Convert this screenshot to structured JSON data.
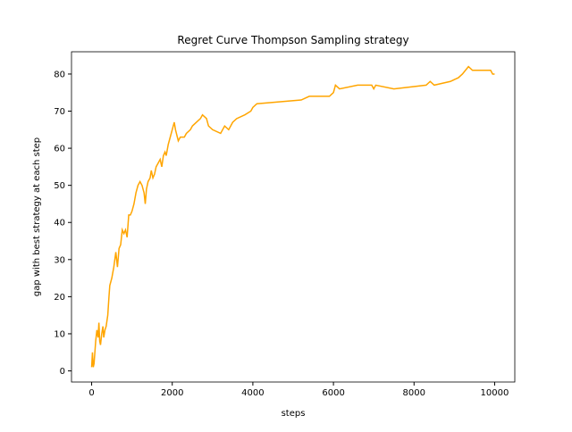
{
  "chart_data": {
    "type": "line",
    "title": "Regret Curve Thompson Sampling strategy",
    "x_label": "steps",
    "y_label": "gap with best strategy at each step",
    "x": [
      0,
      20,
      40,
      60,
      80,
      100,
      130,
      160,
      180,
      200,
      220,
      250,
      280,
      300,
      330,
      360,
      400,
      430,
      450,
      500,
      550,
      600,
      640,
      680,
      720,
      760,
      800,
      840,
      880,
      920,
      960,
      1000,
      1050,
      1100,
      1150,
      1200,
      1250,
      1300,
      1330,
      1360,
      1400,
      1450,
      1480,
      1520,
      1560,
      1600,
      1650,
      1700,
      1740,
      1780,
      1820,
      1850,
      1900,
      1950,
      2000,
      2050,
      2080,
      2150,
      2200,
      2300,
      2350,
      2450,
      2500,
      2600,
      2700,
      2750,
      2850,
      2900,
      3000,
      3200,
      3300,
      3400,
      3500,
      3600,
      3800,
      3950,
      4000,
      4100,
      5200,
      5400,
      5900,
      6000,
      6050,
      6150,
      6600,
      6950,
      7000,
      7050,
      7500,
      8300,
      8400,
      8500,
      8900,
      9100,
      9200,
      9350,
      9450,
      9900,
      9950,
      10000
    ],
    "series": [
      {
        "name": "regret",
        "color": "#ffa500",
        "values": [
          1,
          5,
          1,
          2,
          5,
          8,
          11,
          9,
          13,
          8,
          7,
          10,
          12,
          9,
          11,
          12,
          15,
          20,
          23,
          25,
          28,
          32,
          28,
          33,
          34,
          38,
          37,
          38,
          36,
          42,
          42,
          43,
          45,
          48,
          50,
          51,
          50,
          48,
          45,
          49,
          51,
          52,
          54,
          52,
          53,
          55,
          56,
          57,
          55,
          58,
          59,
          58,
          61,
          63,
          65,
          67,
          65,
          62,
          63,
          63,
          64,
          65,
          66,
          67,
          68,
          69,
          68,
          66,
          65,
          64,
          66,
          65,
          67,
          68,
          69,
          70,
          71,
          72,
          73,
          74,
          74,
          75,
          77,
          76,
          77,
          77,
          76,
          77,
          76,
          77,
          78,
          77,
          78,
          79,
          80,
          82,
          81,
          81,
          80,
          80
        ]
      }
    ],
    "xlim": [
      -500,
      10500
    ],
    "xticks": [
      0,
      2000,
      4000,
      6000,
      8000,
      10000
    ],
    "ylim": [
      -3,
      86
    ],
    "yticks": [
      0,
      10,
      20,
      30,
      40,
      50,
      60,
      70,
      80
    ]
  }
}
